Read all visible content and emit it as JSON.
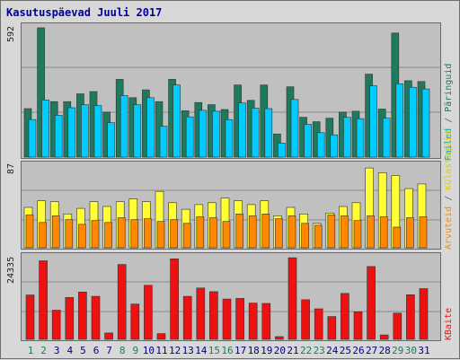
{
  "title": "Kasutuspäevad Juuli 2017",
  "colors": {
    "visits": "#1e7a5e",
    "files": "#00ccff",
    "hits": "#ffff33",
    "sites": "#ff8800",
    "kbytes": "#ee1111",
    "title": "#0000a0",
    "weekend_label": "#1e7a5e",
    "weekday_label": "#000080",
    "panel_bg": "#c0c0c0"
  },
  "side_labels": {
    "top_files": "Failed",
    "top_visits": "Päringuid",
    "mid_hits": "Külastajaid",
    "mid_sites": "Arvuteid",
    "bottom_kbytes": "KBaite"
  },
  "chart_data": {
    "type": "bar",
    "title": "Kasutuspäevad Juuli 2017",
    "categories": [
      "1",
      "2",
      "3",
      "4",
      "5",
      "6",
      "7",
      "8",
      "9",
      "10",
      "11",
      "12",
      "13",
      "14",
      "15",
      "16",
      "17",
      "18",
      "19",
      "20",
      "21",
      "22",
      "23",
      "24",
      "25",
      "26",
      "27",
      "28",
      "29",
      "30",
      "31"
    ],
    "weekend_days": [
      "1",
      "2",
      "8",
      "9",
      "15",
      "16",
      "22",
      "23",
      "29",
      "30"
    ],
    "panels": [
      {
        "ymax_label": "592",
        "ylim": [
          0,
          592
        ],
        "series": [
          {
            "name": "Päringuid",
            "values": [
              222,
              592,
              254,
              254,
              290,
              300,
              206,
              356,
              272,
              308,
              254,
              356,
              212,
              250,
              240,
              218,
              330,
              260,
              330,
              106,
              322,
              182,
              162,
              178,
              206,
              210,
              380,
              220,
              568,
              350,
              346
            ]
          },
          {
            "name": "Failed",
            "values": [
              172,
              262,
              192,
              226,
              240,
              236,
              158,
              282,
              240,
              272,
              142,
              330,
              184,
              214,
              210,
              172,
              248,
              224,
              222,
              64,
              264,
              150,
              112,
              102,
              182,
              176,
              326,
              178,
              336,
              320,
              312
            ]
          }
        ]
      },
      {
        "ymax_label": "87",
        "ylim": [
          0,
          87
        ],
        "series": [
          {
            "name": "Külastajaid",
            "values": [
              43,
              50,
              49,
              36,
              42,
              49,
              44,
              49,
              52,
              49,
              60,
              48,
              41,
              46,
              48,
              53,
              50,
              46,
              50,
              34,
              43,
              36,
              26,
              37,
              44,
              48,
              85,
              80,
              77,
              63,
              68
            ]
          },
          {
            "name": "Arvuteid",
            "values": [
              35,
              27,
              34,
              30,
              25,
              29,
              27,
              32,
              30,
              31,
              28,
              30,
              26,
              33,
              32,
              28,
              36,
              34,
              36,
              31,
              34,
              26,
              24,
              35,
              34,
              29,
              34,
              33,
              22,
              32,
              33
            ]
          }
        ]
      },
      {
        "ymax_label": "24335",
        "ylim": [
          0,
          24335
        ],
        "series": [
          {
            "name": "KBaite",
            "values": [
              13200,
              23400,
              8700,
              12500,
              14100,
              12800,
              1900,
              22300,
              10500,
              16100,
              1700,
              24000,
              12800,
              15300,
              14200,
              12000,
              12200,
              10800,
              10700,
              800,
              24300,
              11800,
              9100,
              6800,
              13700,
              8200,
              21700,
              1300,
              7800,
              13300,
              15100
            ]
          }
        ]
      }
    ]
  }
}
